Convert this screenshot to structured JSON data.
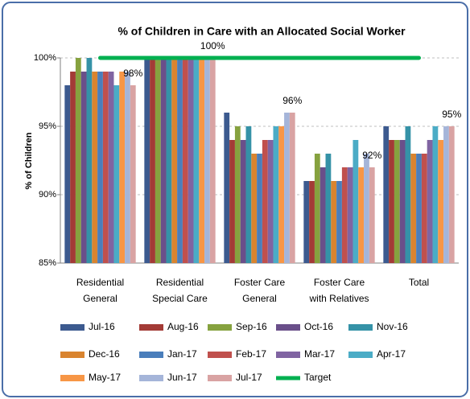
{
  "chart_data": {
    "type": "bar",
    "title": "% of Children in Care with an Allocated Social Worker",
    "y_label": "% of Children",
    "categories": [
      [
        "Residential",
        "General"
      ],
      [
        "Residential",
        "Special Care"
      ],
      [
        "Foster Care",
        "General"
      ],
      [
        "Foster Care",
        "with Relatives"
      ],
      [
        "Total"
      ]
    ],
    "ylim": [
      85,
      100
    ],
    "yticks": [
      {
        "value": 85,
        "label": "85%"
      },
      {
        "value": 90,
        "label": "90%"
      },
      {
        "value": 95,
        "label": "95%"
      },
      {
        "value": 100,
        "label": "100%"
      }
    ],
    "grid": true,
    "legend": "bottom",
    "series": [
      {
        "name": "Jul-16",
        "color": "#3c5a8f",
        "values": [
          98,
          100,
          96,
          91,
          95
        ]
      },
      {
        "name": "Aug-16",
        "color": "#a33b36",
        "values": [
          99,
          100,
          94,
          91,
          94
        ]
      },
      {
        "name": "Sep-16",
        "color": "#86a23f",
        "values": [
          100,
          100,
          95,
          93,
          94
        ]
      },
      {
        "name": "Oct-16",
        "color": "#6a4f8a",
        "values": [
          99,
          100,
          94,
          92,
          94
        ]
      },
      {
        "name": "Nov-16",
        "color": "#3592a7",
        "values": [
          100,
          100,
          95,
          93,
          95
        ]
      },
      {
        "name": "Dec-16",
        "color": "#d9842f",
        "values": [
          99,
          100,
          93,
          91,
          93
        ]
      },
      {
        "name": "Jan-17",
        "color": "#4a7ebb",
        "values": [
          99,
          100,
          93,
          91,
          93
        ]
      },
      {
        "name": "Feb-17",
        "color": "#c0504d",
        "values": [
          99,
          100,
          94,
          92,
          93
        ]
      },
      {
        "name": "Mar-17",
        "color": "#8064a2",
        "values": [
          99,
          100,
          94,
          92,
          94
        ]
      },
      {
        "name": "Apr-17",
        "color": "#4bacc6",
        "values": [
          98,
          100,
          95,
          94,
          95
        ]
      },
      {
        "name": "May-17",
        "color": "#f79646",
        "values": [
          99,
          100,
          95,
          92,
          94
        ]
      },
      {
        "name": "Jun-17",
        "color": "#a5b5d9",
        "values": [
          99,
          100,
          96,
          93,
          95
        ]
      },
      {
        "name": "Jul-17",
        "color": "#d9a3a3",
        "values": [
          98,
          100,
          96,
          92,
          95
        ],
        "value_labels": [
          "98%",
          "100%",
          "96%",
          "92%",
          "95%"
        ]
      },
      {
        "name": "Target",
        "type": "line",
        "color": "#00b050",
        "values": [
          100,
          100,
          100,
          100,
          100
        ]
      }
    ]
  }
}
